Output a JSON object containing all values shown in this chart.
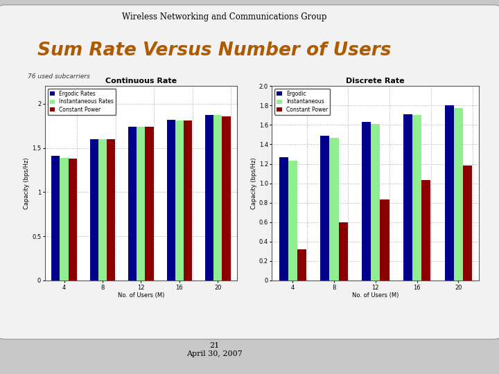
{
  "title": "Sum Rate Versus Number of Users",
  "subtitle": "76 used subcarriers",
  "header": "Wireless Networking and Communications Group",
  "footer_text": "21\nApril 30, 2007",
  "users": [
    4,
    8,
    12,
    16,
    20
  ],
  "continuous": {
    "title": "Continuous Rate",
    "ylabel": "Capacity (bps/Hz)",
    "xlabel": "No. of Users (M)",
    "ylim": [
      0,
      2.2
    ],
    "yticks": [
      0,
      0.5,
      1.0,
      1.5,
      2.0
    ],
    "ytick_labels": [
      "0",
      "0.5",
      "1",
      "1.5",
      "2"
    ],
    "ergodic": [
      1.41,
      1.6,
      1.74,
      1.82,
      1.87
    ],
    "instantaneous": [
      1.39,
      1.6,
      1.74,
      1.81,
      1.87
    ],
    "constant": [
      1.38,
      1.6,
      1.74,
      1.81,
      1.86
    ],
    "legend_labels": [
      "Ergodic Rates",
      "Instantaneous Rates",
      "Constant Power"
    ]
  },
  "discrete": {
    "title": "Discrete Rate",
    "ylabel": "Capacity (bps/Hz)",
    "xlabel": "No. of Users (M)",
    "ylim": [
      0,
      2.0
    ],
    "yticks": [
      0,
      0.2,
      0.4,
      0.6,
      0.8,
      1.0,
      1.2,
      1.4,
      1.6,
      1.8,
      2.0
    ],
    "ergodic": [
      1.27,
      1.49,
      1.63,
      1.71,
      1.8
    ],
    "instantaneous": [
      1.23,
      1.47,
      1.61,
      1.7,
      1.77
    ],
    "constant": [
      0.32,
      0.6,
      0.83,
      1.03,
      1.18
    ],
    "legend_labels": [
      "Ergodic",
      "Instantaneous",
      "Constant Power"
    ]
  },
  "colors": {
    "ergodic": "#00008b",
    "instantaneous": "#90ee90",
    "constant": "#8b0000",
    "title_color": "#b05a00",
    "header_color": "#000000",
    "grid_color": "#aaaaaa",
    "fig_bg": "#c8c8c8",
    "slide_bg": "#f2f2f2"
  },
  "bar_width": 0.22
}
